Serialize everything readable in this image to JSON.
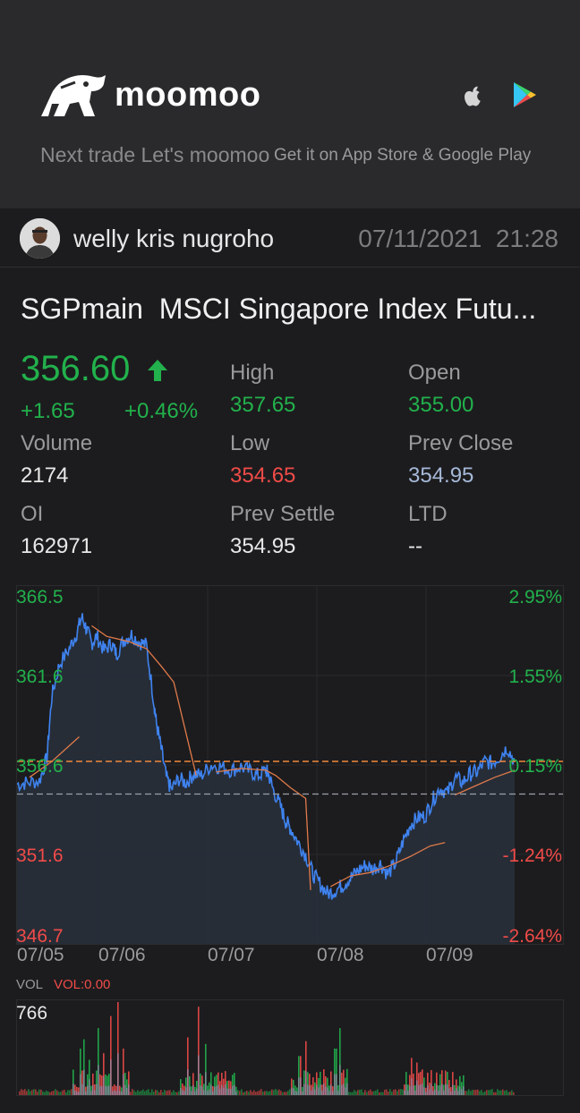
{
  "banner": {
    "brand": "moomoo",
    "slogan": "Next trade Let's moomoo",
    "stores_text": "Get it on App Store & Google Play",
    "icons": [
      "moomoo-logo-icon",
      "apple-icon",
      "google-play-icon"
    ]
  },
  "post": {
    "author": "welly kris nugroho",
    "date": "07/11/2021",
    "time": "21:28"
  },
  "quote": {
    "symbol": "SGPmain",
    "name": "MSCI Singapore Index Futu...",
    "price": "356.60",
    "change": "+1.65",
    "change_pct": "+0.46%",
    "stats": [
      {
        "label": "High",
        "value": "357.65",
        "color": "green"
      },
      {
        "label": "Open",
        "value": "355.00",
        "color": "green"
      },
      {
        "label": "Volume",
        "value": "2174",
        "color": "white"
      },
      {
        "label": "Low",
        "value": "354.65",
        "color": "red"
      },
      {
        "label": "Prev Close",
        "value": "354.95",
        "color": "blue"
      },
      {
        "label": "OI",
        "value": "162971",
        "color": "white"
      },
      {
        "label": "Prev Settle",
        "value": "354.95",
        "color": "white"
      },
      {
        "label": "LTD",
        "value": "--",
        "color": "white"
      }
    ]
  },
  "colors": {
    "up": "#22b14c",
    "down": "#f04b48",
    "line": "#3f83f0",
    "ma": "#e07a4a",
    "prev_close": "#f0883c"
  },
  "chart_data": {
    "type": "line",
    "y_ticks": [
      "366.5",
      "361.6",
      "356.6",
      "351.6",
      "346.7"
    ],
    "pct_ticks": [
      "2.95%",
      "1.55%",
      "0.15%",
      "-1.24%",
      "-2.64%"
    ],
    "x_ticks": [
      "07/05",
      "07/06",
      "07/07",
      "07/08",
      "07/09"
    ],
    "ylim": [
      346.7,
      366.5
    ],
    "prev_close": 354.95,
    "last": 356.6,
    "price_series": [
      [
        0.0,
        355.5
      ],
      [
        0.04,
        355.6
      ],
      [
        0.09,
        355.7
      ],
      [
        0.12,
        357.0
      ],
      [
        0.14,
        360.5
      ],
      [
        0.17,
        362.3
      ],
      [
        0.21,
        363.2
      ],
      [
        0.24,
        364.1
      ],
      [
        0.26,
        365.0
      ],
      [
        0.28,
        364.3
      ],
      [
        0.3,
        363.5
      ],
      [
        0.32,
        363.9
      ],
      [
        0.35,
        363.1
      ],
      [
        0.38,
        363.5
      ],
      [
        0.4,
        362.9
      ],
      [
        0.43,
        363.7
      ],
      [
        0.46,
        364.0
      ],
      [
        0.49,
        363.6
      ],
      [
        0.52,
        363.4
      ],
      [
        0.55,
        360.2
      ],
      [
        0.56,
        359.0
      ],
      [
        0.58,
        357.5
      ],
      [
        0.6,
        355.9
      ],
      [
        0.62,
        355.2
      ],
      [
        0.65,
        355.8
      ],
      [
        0.68,
        355.6
      ],
      [
        0.71,
        356.1
      ],
      [
        0.74,
        356.0
      ],
      [
        0.78,
        356.6
      ],
      [
        0.82,
        356.5
      ],
      [
        0.86,
        356.3
      ],
      [
        0.9,
        356.5
      ],
      [
        0.94,
        356.2
      ],
      [
        0.97,
        356.0
      ],
      [
        1.0,
        356.3
      ],
      [
        1.01,
        356.1
      ],
      [
        1.03,
        355.2
      ],
      [
        1.06,
        354.2
      ],
      [
        1.08,
        353.4
      ],
      [
        1.1,
        353.0
      ],
      [
        1.13,
        352.2
      ],
      [
        1.16,
        351.5
      ],
      [
        1.19,
        350.4
      ],
      [
        1.22,
        349.8
      ],
      [
        1.25,
        349.3
      ],
      [
        1.28,
        349.5
      ],
      [
        1.31,
        349.8
      ],
      [
        1.34,
        350.2
      ],
      [
        1.37,
        350.6
      ],
      [
        1.4,
        350.9
      ],
      [
        1.43,
        350.7
      ],
      [
        1.46,
        351.0
      ],
      [
        1.49,
        350.4
      ],
      [
        1.52,
        351.0
      ],
      [
        1.55,
        352.2
      ],
      [
        1.58,
        353.2
      ],
      [
        1.61,
        353.6
      ],
      [
        1.64,
        353.7
      ],
      [
        1.67,
        354.6
      ],
      [
        1.7,
        355.3
      ],
      [
        1.73,
        355.0
      ],
      [
        1.76,
        355.9
      ],
      [
        1.79,
        355.6
      ],
      [
        1.82,
        356.1
      ],
      [
        1.85,
        356.2
      ],
      [
        1.88,
        356.8
      ],
      [
        1.91,
        356.7
      ],
      [
        1.94,
        357.1
      ],
      [
        1.97,
        357.6
      ],
      [
        2.0,
        356.8
      ]
    ],
    "ma_series": [
      [
        0.05,
        355.9
      ],
      [
        0.14,
        356.8
      ],
      [
        0.25,
        358.2
      ],
      [
        0.3,
        364.5
      ],
      [
        0.36,
        363.9
      ],
      [
        0.45,
        363.6
      ],
      [
        0.52,
        363.2
      ],
      [
        0.58,
        362.2
      ],
      [
        0.63,
        361.3
      ],
      [
        0.72,
        356.0
      ],
      [
        0.8,
        356.2
      ],
      [
        0.9,
        356.4
      ],
      [
        1.0,
        356.3
      ],
      [
        1.04,
        356.0
      ],
      [
        1.1,
        355.3
      ],
      [
        1.16,
        354.7
      ],
      [
        1.18,
        349.5
      ],
      [
        1.26,
        349.7
      ],
      [
        1.34,
        350.3
      ],
      [
        1.42,
        350.5
      ],
      [
        1.5,
        350.9
      ],
      [
        1.58,
        351.4
      ],
      [
        1.66,
        352.0
      ],
      [
        1.72,
        352.2
      ],
      [
        1.76,
        354.9
      ],
      [
        1.84,
        355.4
      ],
      [
        1.92,
        355.9
      ],
      [
        2.0,
        356.3
      ]
    ],
    "volume": {
      "max_label": "766",
      "label": "VOL",
      "value_label": "VOL:0.00"
    }
  }
}
